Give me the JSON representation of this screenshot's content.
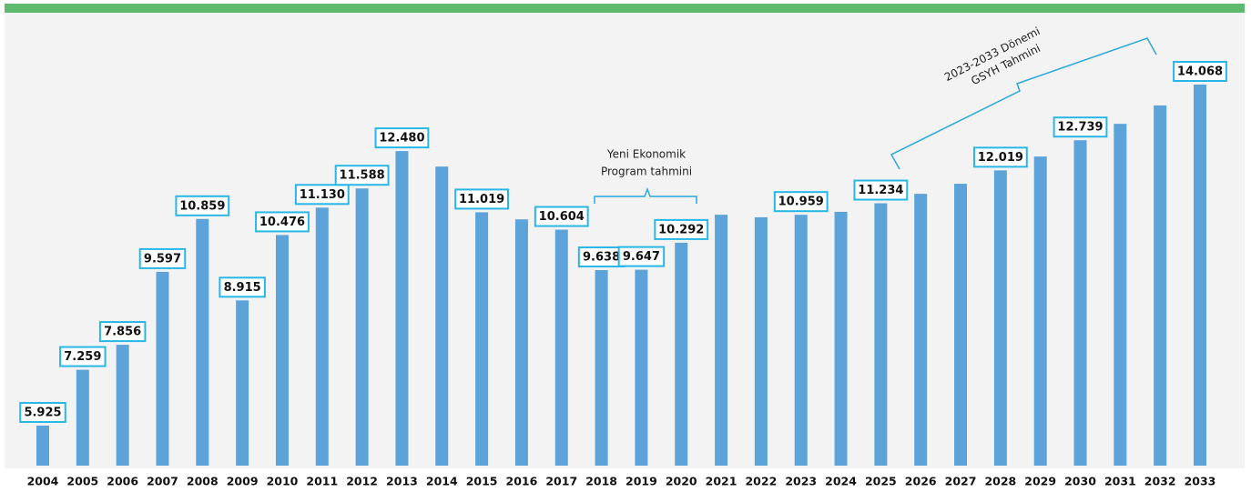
{
  "chart_data": {
    "type": "bar",
    "categories": [
      "2004",
      "2005",
      "2006",
      "2007",
      "2008",
      "2009",
      "2010",
      "2011",
      "2012",
      "2013",
      "2014",
      "2015",
      "2016",
      "2017",
      "2018",
      "2019",
      "2020",
      "2021",
      "2022",
      "2023",
      "2024",
      "2025",
      "2026",
      "2027",
      "2028",
      "2029",
      "2030",
      "2031",
      "2032",
      "2033"
    ],
    "values": [
      5925,
      7259,
      7856,
      9597,
      10859,
      8915,
      10476,
      11130,
      11588,
      12480,
      12110,
      11019,
      10850,
      10604,
      9638,
      9647,
      10292,
      10960,
      10900,
      10959,
      11030,
      11234,
      11460,
      11700,
      12019,
      12350,
      12739,
      13130,
      13570,
      14068
    ],
    "value_labels": [
      "5.925",
      "7.259",
      "7.856",
      "9.597",
      "10.859",
      "8.915",
      "10.476",
      "11.130",
      "11.588",
      "12.480",
      null,
      "11.019",
      null,
      "10.604",
      "9.638",
      "9.647",
      "10.292",
      null,
      null,
      "10.959",
      null,
      "11.234",
      null,
      null,
      "12.019",
      null,
      "12.739",
      null,
      null,
      "14.068"
    ],
    "color": "#5ba3d9",
    "ylim": [
      4970,
      14600
    ],
    "annotations": [
      {
        "lines": [
          "Yeni Ekonomik",
          "Program tahmini"
        ]
      },
      {
        "lines": [
          "2023-2033 Dönemi",
          "GSYH Tahmini"
        ]
      }
    ]
  }
}
